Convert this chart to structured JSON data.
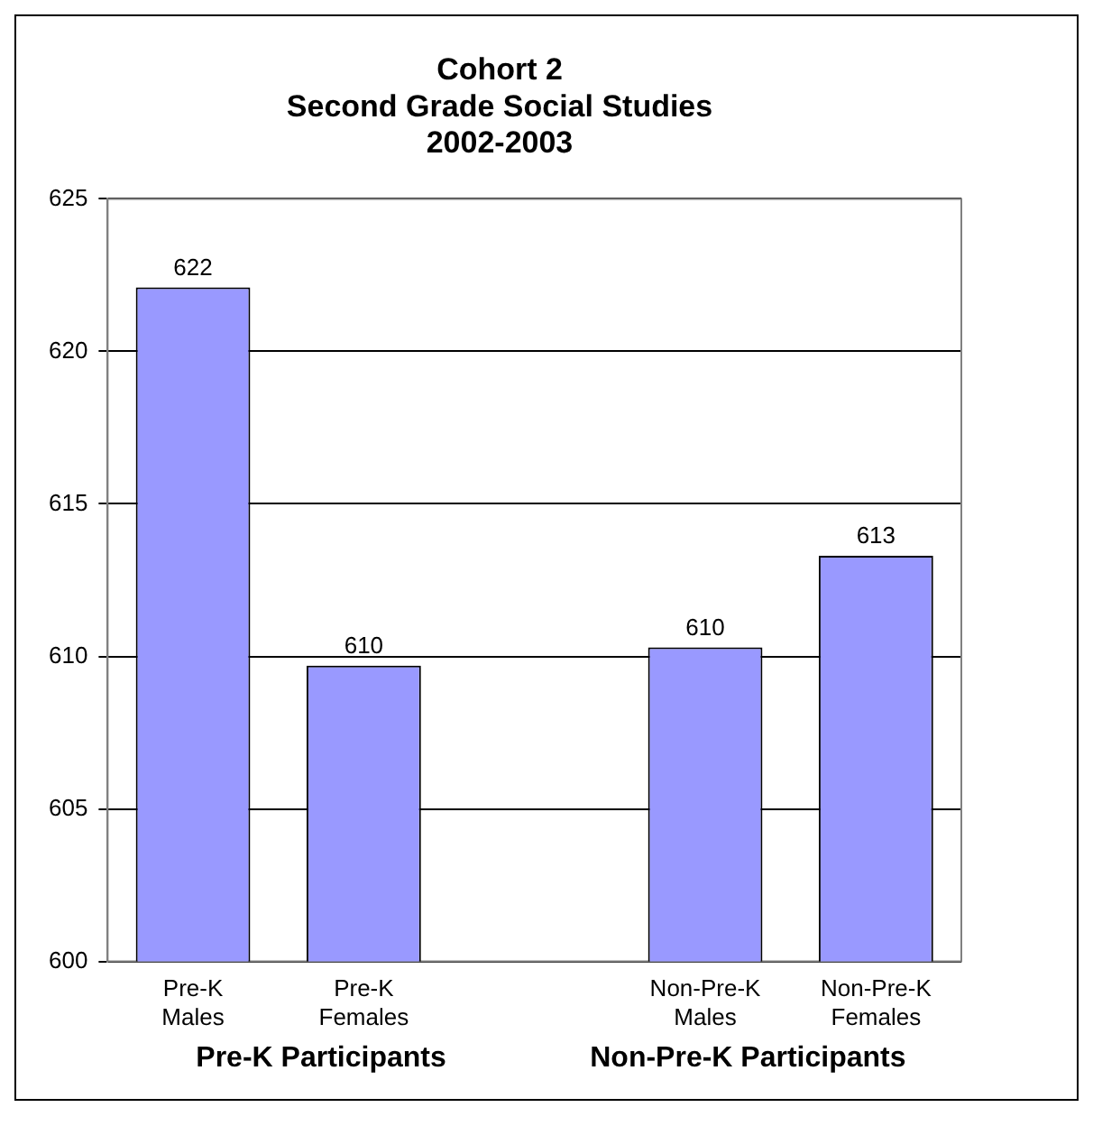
{
  "chart_data": {
    "type": "bar",
    "title": "Cohort 2\nSecond Grade Social Studies\n2002-2003",
    "categories": [
      "Pre-K\nMales",
      "Pre-K\nFemales",
      null,
      "Non-Pre-K\nMales",
      "Non-Pre-K\nFemales"
    ],
    "values": [
      622.1,
      609.7,
      null,
      610.3,
      613.3
    ],
    "value_labels": [
      "622",
      "610",
      null,
      "610",
      "613"
    ],
    "color": "#9999ff",
    "ylim": [
      600,
      625
    ],
    "yticks": [
      600,
      605,
      610,
      615,
      620,
      625
    ],
    "grid": "y",
    "annotations": [
      "Pre-K Participants",
      "Non-Pre-K Participants"
    ],
    "legend": false
  }
}
